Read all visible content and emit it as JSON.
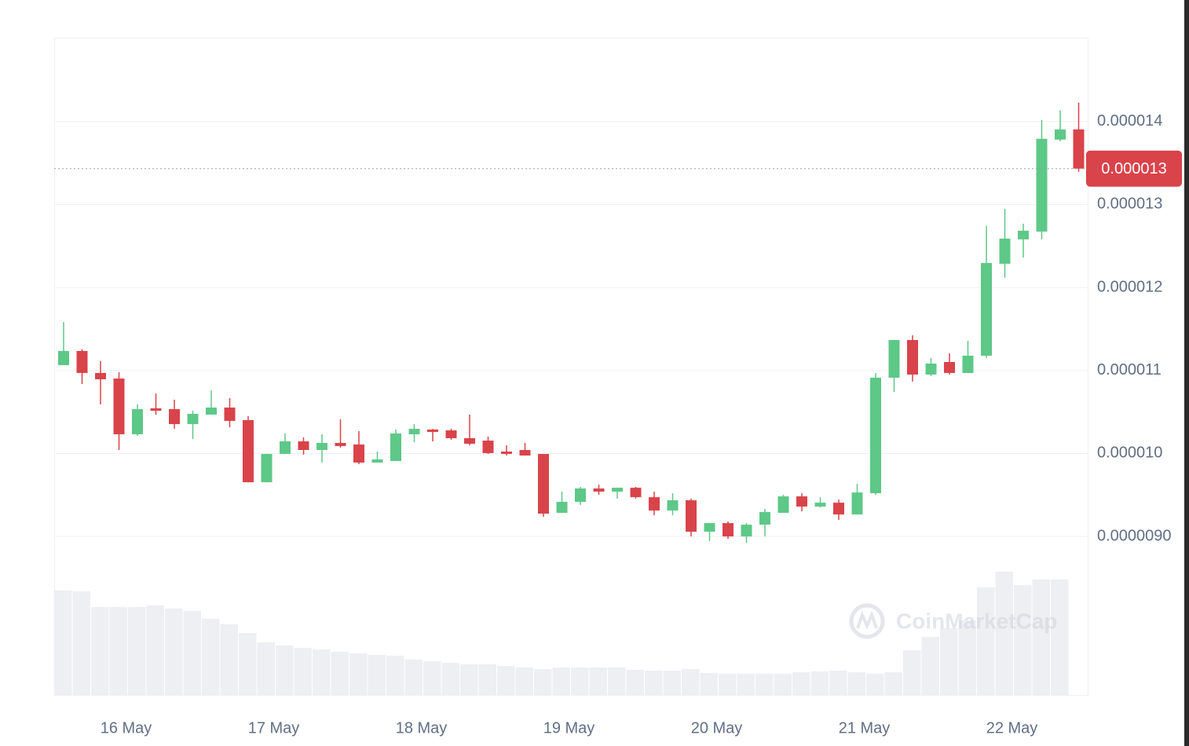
{
  "chart_data": {
    "type": "candlestick",
    "categories": [
      null,
      null,
      null,
      "16 May",
      null,
      null,
      null,
      null,
      null,
      null,
      null,
      "17 May",
      null,
      null,
      null,
      null,
      null,
      null,
      null,
      "18 May",
      null,
      null,
      null,
      null,
      null,
      null,
      null,
      "19 May",
      null,
      null,
      null,
      null,
      null,
      null,
      null,
      "20 May",
      null,
      null,
      null,
      null,
      null,
      null,
      null,
      "21 May",
      null,
      null,
      null,
      null,
      null,
      null,
      null,
      "22 May",
      null,
      null,
      null,
      null
    ],
    "open": [
      1.1064e-05,
      1.1235e-05,
      1.097e-05,
      1.0903e-05,
      1.0231e-05,
      1.0544e-05,
      1.0534e-05,
      1.0354e-05,
      1.0468e-05,
      1.0553e-05,
      1.0402e-05,
      9.653e-06,
      9.994e-06,
      1.0146e-05,
      1.0042e-05,
      1.0127e-05,
      1.0108e-05,
      9.89e-06,
      9.909e-06,
      1.0231e-05,
      1.0288e-05,
      1.0278e-05,
      1.0184e-05,
      1.0155e-05,
      1.0023e-05,
      1.0042e-05,
      9.994e-06,
      9.284e-06,
      9.417e-06,
      9.578e-06,
      9.54e-06,
      9.587e-06,
      9.473e-06,
      9.312e-06,
      9.436e-06,
      9.057e-06,
      9.161e-06,
      9e-06,
      9.142e-06,
      9.284e-06,
      9.483e-06,
      9.36e-06,
      9.407e-06,
      9.265e-06,
      9.521e-06,
      1.0913e-05,
      1.1367e-05,
      1.0951e-05,
      1.1102e-05,
      1.097e-05,
      1.1178e-05,
      1.2286e-05,
      1.258e-05,
      1.2674e-05,
      1.3782e-05,
      1.3905e-05
    ],
    "high": [
      1.1585e-05,
      1.1254e-05,
      1.1112e-05,
      1.0979e-05,
      1.0591e-05,
      1.0723e-05,
      1.0648e-05,
      1.0515e-05,
      1.0761e-05,
      1.0667e-05,
      1.0449e-05,
      9.994e-06,
      1.0241e-05,
      1.0193e-05,
      1.0231e-05,
      1.0411e-05,
      1.0269e-05,
      1.0023e-05,
      1.0288e-05,
      1.0354e-05,
      1.0297e-05,
      1.0297e-05,
      1.0468e-05,
      1.0203e-05,
      1.0098e-05,
      1.0127e-05,
      9.994e-06,
      9.54e-06,
      9.597e-06,
      9.625e-06,
      9.587e-06,
      9.597e-06,
      9.54e-06,
      9.521e-06,
      9.455e-06,
      9.161e-06,
      9.18e-06,
      9.161e-06,
      9.331e-06,
      9.502e-06,
      9.521e-06,
      9.473e-06,
      9.445e-06,
      9.634e-06,
      1.097e-05,
      1.1367e-05,
      1.1424e-05,
      1.115e-05,
      1.1206e-05,
      1.1358e-05,
      1.2741e-05,
      1.2949e-05,
      1.2769e-05,
      1.4019e-05,
      1.4133e-05,
      1.4227e-05
    ],
    "low": [
      1.1064e-05,
      1.0837e-05,
      1.0591e-05,
      1.0042e-05,
      1.0212e-05,
      1.0468e-05,
      1.0297e-05,
      1.0174e-05,
      1.0468e-05,
      1.0316e-05,
      9.653e-06,
      9.653e-06,
      9.994e-06,
      9.985e-06,
      9.89e-06,
      1.007e-05,
      9.871e-06,
      9.89e-06,
      9.909e-06,
      1.0136e-05,
      1.0146e-05,
      1.0165e-05,
      1.0098e-05,
      9.994e-06,
      9.975e-06,
      9.975e-06,
      9.237e-06,
      9.284e-06,
      9.379e-06,
      9.502e-06,
      9.455e-06,
      9.455e-06,
      9.256e-06,
      9.256e-06,
      9e-06,
      8.943e-06,
      8.972e-06,
      8.924e-06,
      9e-06,
      9.284e-06,
      9.303e-06,
      9.35e-06,
      9.199e-06,
      9.265e-06,
      9.502e-06,
      1.0742e-05,
      1.0866e-05,
      1.0932e-05,
      1.0951e-05,
      1.097e-05,
      1.115e-05,
      1.2116e-05,
      1.2362e-05,
      1.258e-05,
      1.3763e-05,
      1.3394e-05
    ],
    "close": [
      1.1235e-05,
      1.097e-05,
      1.0894e-05,
      1.0231e-05,
      1.0534e-05,
      1.0515e-05,
      1.0354e-05,
      1.0477e-05,
      1.0553e-05,
      1.0392e-05,
      9.653e-06,
      9.994e-06,
      1.0146e-05,
      1.0042e-05,
      1.0127e-05,
      1.0089e-05,
      9.89e-06,
      9.928e-06,
      1.0241e-05,
      1.0297e-05,
      1.0259e-05,
      1.0184e-05,
      1.0117e-05,
      1.0004e-05,
      9.994e-06,
      9.975e-06,
      9.275e-06,
      9.417e-06,
      9.578e-06,
      9.54e-06,
      9.587e-06,
      9.473e-06,
      9.312e-06,
      9.436e-06,
      9.057e-06,
      9.161e-06,
      9e-06,
      9.142e-06,
      9.294e-06,
      9.483e-06,
      9.36e-06,
      9.407e-06,
      9.265e-06,
      9.53e-06,
      1.0913e-05,
      1.1367e-05,
      1.0951e-05,
      1.1083e-05,
      1.097e-05,
      1.1178e-05,
      1.2295e-05,
      1.2589e-05,
      1.2684e-05,
      1.3792e-05,
      1.3905e-05,
      1.3432e-05
    ],
    "volume": [
      133,
      132,
      112,
      112,
      112,
      114,
      110,
      107,
      97,
      90,
      79,
      67,
      63,
      60,
      58,
      55,
      53,
      51,
      50,
      45,
      43,
      41,
      39,
      39,
      37,
      35,
      33,
      35,
      35,
      35,
      35,
      32,
      31,
      31,
      33,
      28,
      27,
      27,
      27,
      27,
      29,
      30,
      31,
      29,
      27,
      29,
      57,
      74,
      85,
      95,
      137,
      157,
      140,
      147,
      147,
      null
    ],
    "up_color": "#5dc887",
    "down_color": "#d9434a",
    "volume_color": "#eeeff3",
    "ylim": [
      7.09e-06,
      1.501e-05
    ],
    "yticks": [
      {
        "value": 9e-06,
        "label": "0.0000090"
      },
      {
        "value": 1e-05,
        "label": "0.000010"
      },
      1.1e-05,
      1.2e-05,
      1.3e-05,
      1.4e-05
    ],
    "grid": true,
    "current_price": {
      "value": 1.3432e-05,
      "label": "0.000013"
    },
    "watermark": "CoinMarketCap"
  }
}
